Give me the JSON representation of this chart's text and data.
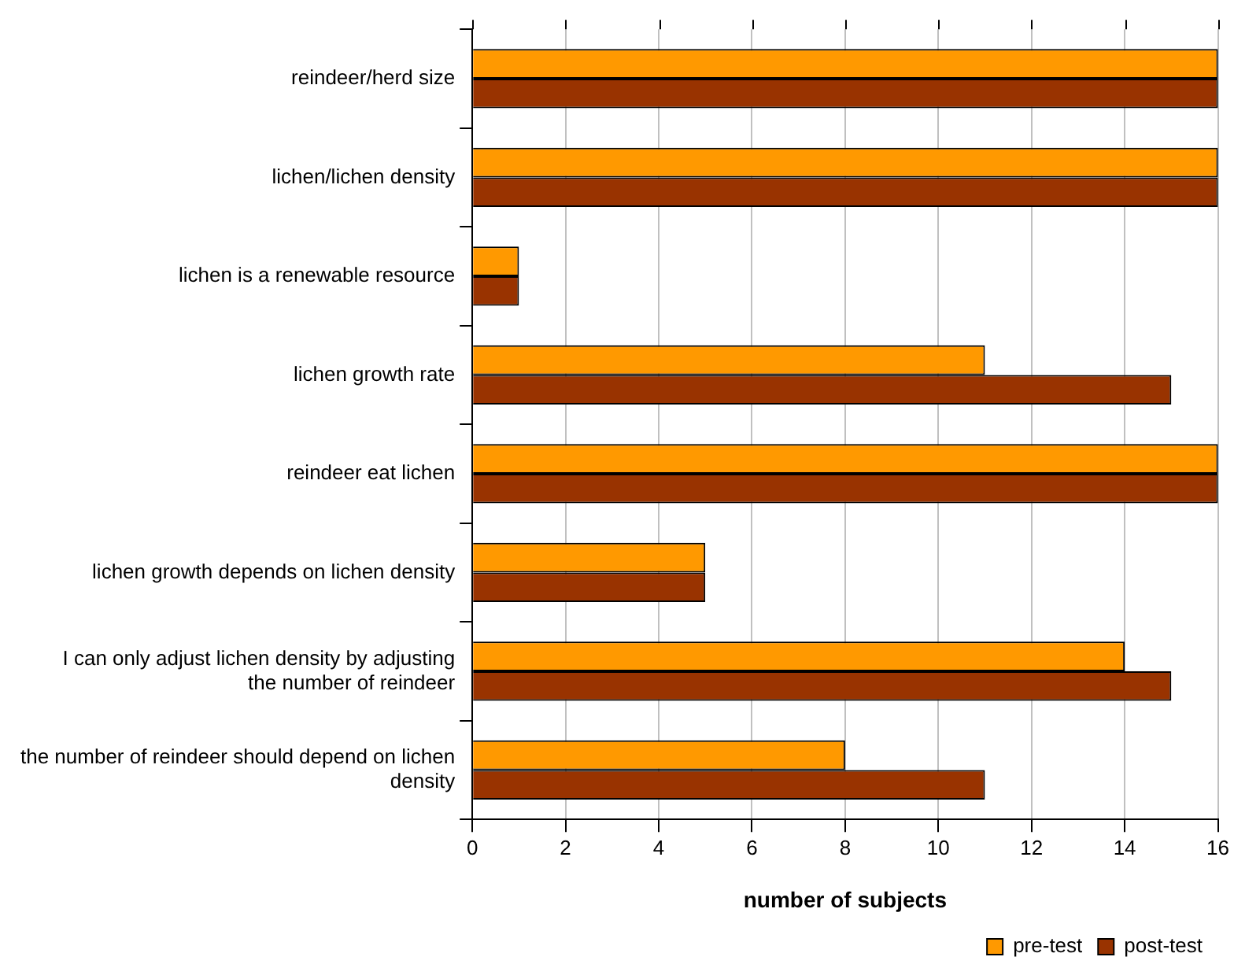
{
  "chart_data": {
    "type": "bar",
    "orientation": "horizontal",
    "xlabel": "number of subjects",
    "categories": [
      "reindeer/herd size",
      "lichen/lichen density",
      "lichen is a renewable resource",
      "lichen growth rate",
      "reindeer eat lichen",
      "lichen growth depends on lichen density",
      "I can only adjust lichen density by adjusting the number of reindeer",
      "the number of reindeer should depend on lichen density"
    ],
    "series": [
      {
        "name": "pre-test",
        "color": "#ff9900",
        "values": [
          16,
          16,
          1,
          11,
          16,
          5,
          14,
          8
        ]
      },
      {
        "name": "post-test",
        "color": "#993300",
        "values": [
          16,
          16,
          1,
          15,
          16,
          5,
          15,
          11
        ]
      }
    ],
    "xlim": [
      0,
      16
    ],
    "xticks": [
      0,
      2,
      4,
      6,
      8,
      10,
      12,
      14,
      16
    ],
    "grid": "x",
    "legend": "bottom right"
  }
}
